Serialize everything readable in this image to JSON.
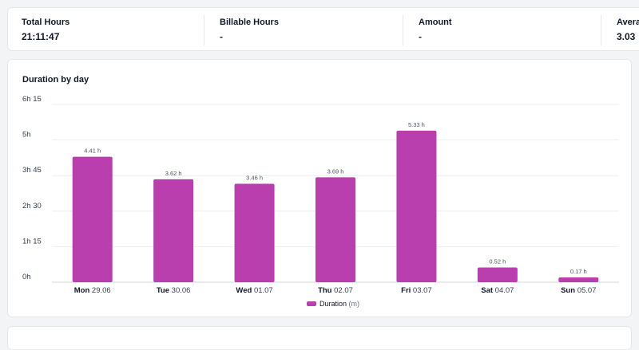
{
  "stats": [
    {
      "label": "Total Hours",
      "value": "21:11:47"
    },
    {
      "label": "Billable Hours",
      "value": "-"
    },
    {
      "label": "Amount",
      "value": "-"
    },
    {
      "label": "Avera",
      "value": "3.03"
    }
  ],
  "chart_data": {
    "type": "bar",
    "title": "Duration by day",
    "y_ticks": [
      "0h",
      "1h 15",
      "2h 30",
      "3h 45",
      "5h",
      "6h 15"
    ],
    "ylim_hours": [
      0,
      6.25
    ],
    "grid": true,
    "legend_position": "bottom-center",
    "color": "#b83fad",
    "categories": [
      {
        "day": "Mon",
        "date": "29.06"
      },
      {
        "day": "Tue",
        "date": "30.06"
      },
      {
        "day": "Wed",
        "date": "01.07"
      },
      {
        "day": "Thu",
        "date": "02.07"
      },
      {
        "day": "Fri",
        "date": "03.07"
      },
      {
        "day": "Sat",
        "date": "04.07"
      },
      {
        "day": "Sun",
        "date": "05.07"
      }
    ],
    "series": [
      {
        "name": "Duration",
        "values": [
          4.41,
          3.62,
          3.46,
          3.69,
          5.33,
          0.52,
          0.17
        ],
        "labels": [
          "4.41 h",
          "3.62 h",
          "3.46 h",
          "3.69 h",
          "5.33 h",
          "0.52 h",
          "0.17 h"
        ]
      }
    ],
    "legend": {
      "name": "Duration",
      "unit": "(m)"
    }
  }
}
